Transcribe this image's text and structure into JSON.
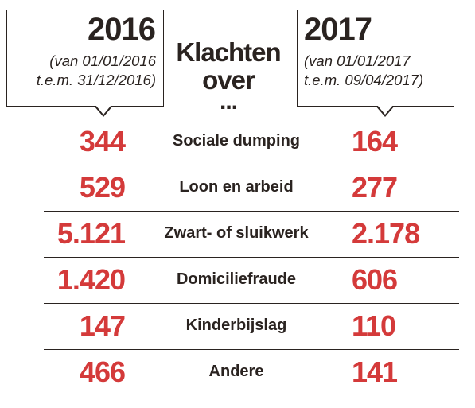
{
  "header": {
    "left": {
      "year": "2016",
      "range_line1": "(van 01/01/2016",
      "range_line2": "t.e.m. 31/12/2016)"
    },
    "middle": {
      "line1": "Klachten",
      "line2": "over",
      "line3": "..."
    },
    "right": {
      "year": "2017",
      "range_line1": "(van 01/01/2017",
      "range_line2": "t.e.m. 09/04/2017)"
    }
  },
  "rows": [
    {
      "v2016": "344",
      "label": "Sociale dumping",
      "v2017": "164"
    },
    {
      "v2016": "529",
      "label": "Loon en arbeid",
      "v2017": "277"
    },
    {
      "v2016": "5.121",
      "label": "Zwart- of sluikwerk",
      "v2017": "2.178"
    },
    {
      "v2016": "1.420",
      "label": "Domiciliefraude",
      "v2017": "606"
    },
    {
      "v2016": "147",
      "label": "Kinderbijslag",
      "v2017": "110"
    },
    {
      "v2016": "466",
      "label": "Andere",
      "v2017": "141"
    }
  ],
  "colors": {
    "number": "#d43a3a",
    "text": "#2a2320",
    "background": "#ffffff"
  }
}
